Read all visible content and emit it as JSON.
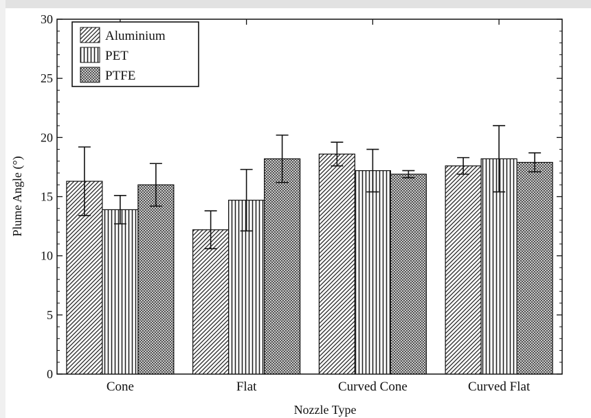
{
  "chart_data": {
    "type": "bar",
    "title": "",
    "xlabel": "Nozzle Type",
    "ylabel": "Plume Angle (°)",
    "ylim": [
      0,
      30
    ],
    "yticks": [
      0,
      5,
      10,
      15,
      20,
      25,
      30
    ],
    "categories": [
      "Cone",
      "Flat",
      "Curved Cone",
      "Curved Flat"
    ],
    "series": [
      {
        "name": "Aluminium",
        "pattern": "diagonal-hatch",
        "values": [
          16.3,
          12.2,
          18.6,
          17.6
        ],
        "error": [
          2.9,
          1.6,
          1.0,
          0.7
        ]
      },
      {
        "name": "PET",
        "pattern": "vertical-hatch",
        "values": [
          13.9,
          14.7,
          17.2,
          18.2
        ],
        "error": [
          1.2,
          2.6,
          1.8,
          2.8
        ]
      },
      {
        "name": "PTFE",
        "pattern": "crosshatch",
        "values": [
          16.0,
          18.2,
          16.9,
          17.9
        ],
        "error": [
          1.8,
          2.0,
          0.3,
          0.8
        ]
      }
    ],
    "legend_position": "top-left",
    "grid": false
  }
}
